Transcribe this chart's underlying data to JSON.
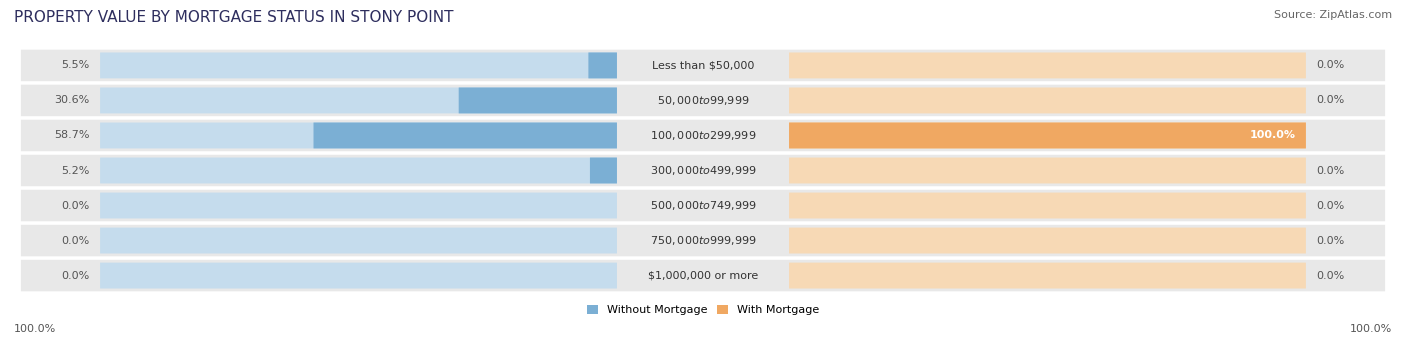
{
  "title": "PROPERTY VALUE BY MORTGAGE STATUS IN STONY POINT",
  "source": "Source: ZipAtlas.com",
  "categories": [
    "Less than $50,000",
    "$50,000 to $99,999",
    "$100,000 to $299,999",
    "$300,000 to $499,999",
    "$500,000 to $749,999",
    "$750,000 to $999,999",
    "$1,000,000 or more"
  ],
  "without_mortgage": [
    5.5,
    30.6,
    58.7,
    5.2,
    0.0,
    0.0,
    0.0
  ],
  "with_mortgage": [
    0.0,
    0.0,
    100.0,
    0.0,
    0.0,
    0.0,
    0.0
  ],
  "color_without": "#7bafd4",
  "color_with": "#f0a862",
  "color_without_light": "#c5dced",
  "color_with_light": "#f7d9b5",
  "bg_row_color": "#e8e8e8",
  "title_color": "#2e2e5e",
  "title_fontsize": 11,
  "source_fontsize": 8,
  "label_fontsize": 8,
  "category_fontsize": 8,
  "figsize": [
    14.06,
    3.41
  ],
  "dpi": 100
}
